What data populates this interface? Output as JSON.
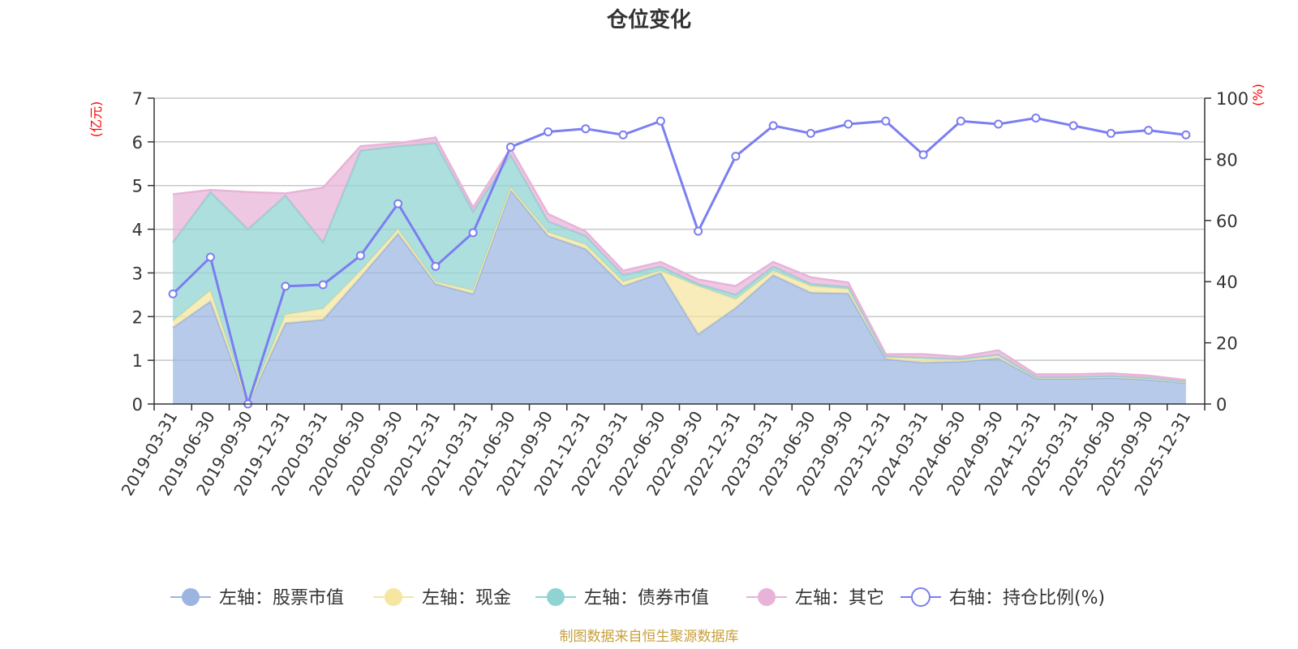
{
  "chart_data": {
    "type": "area",
    "title": "仓位变化",
    "left_axis": {
      "unit_label": "(亿元)",
      "ylim": [
        0,
        7
      ],
      "ticks": [
        0,
        1,
        2,
        3,
        4,
        5,
        6,
        7
      ]
    },
    "right_axis": {
      "unit_label": "(%)",
      "ylim": [
        0,
        100
      ],
      "ticks": [
        0,
        20,
        40,
        60,
        80,
        100
      ]
    },
    "categories": [
      "2019-03-31",
      "2019-06-30",
      "2019-09-30",
      "2019-12-31",
      "2020-03-31",
      "2020-06-30",
      "2020-09-30",
      "2020-12-31",
      "2021-03-31",
      "2021-06-30",
      "2021-09-30",
      "2021-12-31",
      "2022-03-31",
      "2022-06-30",
      "2022-09-30",
      "2022-12-31",
      "2023-03-31",
      "2023-06-30",
      "2023-09-30",
      "2023-12-31",
      "2024-03-31",
      "2024-06-30",
      "2024-09-30",
      "2024-12-31",
      "2025-03-31",
      "2025-06-30",
      "2025-09-30",
      "2025-12-31"
    ],
    "series": [
      {
        "name": "左轴：股票市值",
        "axis": "left",
        "stack": true,
        "color": "#9bb5e0",
        "values": [
          1.75,
          2.35,
          0.0,
          1.85,
          1.93,
          2.9,
          3.9,
          2.75,
          2.52,
          4.9,
          3.85,
          3.55,
          2.7,
          3.0,
          1.6,
          2.2,
          2.95,
          2.55,
          2.53,
          1.03,
          0.95,
          0.97,
          1.05,
          0.58,
          0.58,
          0.6,
          0.56,
          0.48
        ]
      },
      {
        "name": "左轴：现金",
        "axis": "left",
        "stack": true,
        "color": "#f5e6a0",
        "values": [
          0.15,
          0.25,
          0.0,
          0.2,
          0.25,
          0.15,
          0.1,
          0.05,
          0.08,
          0.05,
          0.08,
          0.1,
          0.1,
          0.05,
          1.1,
          0.2,
          0.1,
          0.15,
          0.1,
          0.05,
          0.1,
          0.05,
          0.07,
          0.03,
          0.03,
          0.03,
          0.03,
          0.02
        ]
      },
      {
        "name": "左轴：债券市值",
        "axis": "left",
        "stack": true,
        "color": "#8fd3d3",
        "values": [
          1.8,
          2.25,
          4.0,
          2.72,
          1.52,
          2.75,
          1.9,
          3.17,
          1.8,
          0.75,
          0.25,
          0.2,
          0.15,
          0.1,
          0.05,
          0.1,
          0.1,
          0.05,
          0.05,
          0.01,
          0.01,
          0.01,
          0.01,
          0.01,
          0.01,
          0.01,
          0.01,
          0.01
        ]
      },
      {
        "name": "左轴：其它",
        "axis": "left",
        "stack": true,
        "color": "#e8b3d8",
        "values": [
          1.1,
          0.05,
          0.85,
          0.05,
          1.25,
          0.1,
          0.07,
          0.13,
          0.1,
          0.15,
          0.17,
          0.1,
          0.1,
          0.1,
          0.1,
          0.2,
          0.1,
          0.15,
          0.1,
          0.05,
          0.08,
          0.05,
          0.1,
          0.06,
          0.06,
          0.06,
          0.05,
          0.04
        ]
      },
      {
        "name": "右轴：持仓比例(%)",
        "axis": "right",
        "type": "line",
        "color": "#7b7ef0",
        "values": [
          36,
          48,
          0,
          38.5,
          39,
          48.5,
          65.5,
          45,
          56,
          84,
          89,
          90,
          88,
          92.5,
          56.5,
          81,
          91,
          88.5,
          91.5,
          92.5,
          81.5,
          92.5,
          91.5,
          93.5,
          91,
          88.5,
          89.5,
          88
        ]
      }
    ],
    "legend_position": "bottom",
    "grid": true
  },
  "source_note": "制图数据来自恒生聚源数据库"
}
